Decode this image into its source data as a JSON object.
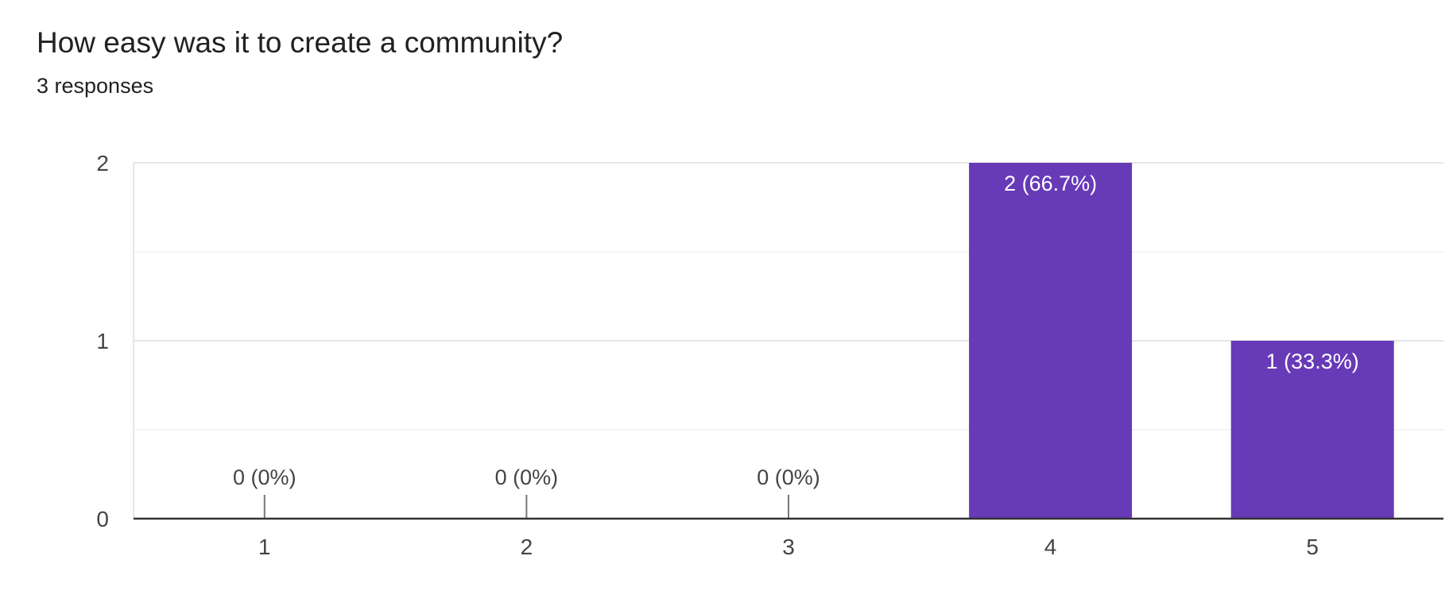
{
  "chart_data": {
    "type": "bar",
    "title": "How easy was it to create a community?",
    "subtitle": "3 responses",
    "categories": [
      "1",
      "2",
      "3",
      "4",
      "5"
    ],
    "values": [
      0,
      0,
      0,
      2,
      1
    ],
    "data_labels": [
      "0 (0%)",
      "0 (0%)",
      "0 (0%)",
      "2 (66.7%)",
      "1 (33.3%)"
    ],
    "ylim": [
      0,
      2
    ],
    "yticks": [
      0,
      1,
      2
    ],
    "grid": true,
    "xlabel": "",
    "ylabel": ""
  },
  "colors": {
    "bar": "#673ab7",
    "inside_label": "#ffffff",
    "outside_label": "#444444",
    "grid_major": "#e6e6e6",
    "grid_minor": "#f3f3f3",
    "baseline": "#333333",
    "zero_tick": "#777777"
  }
}
